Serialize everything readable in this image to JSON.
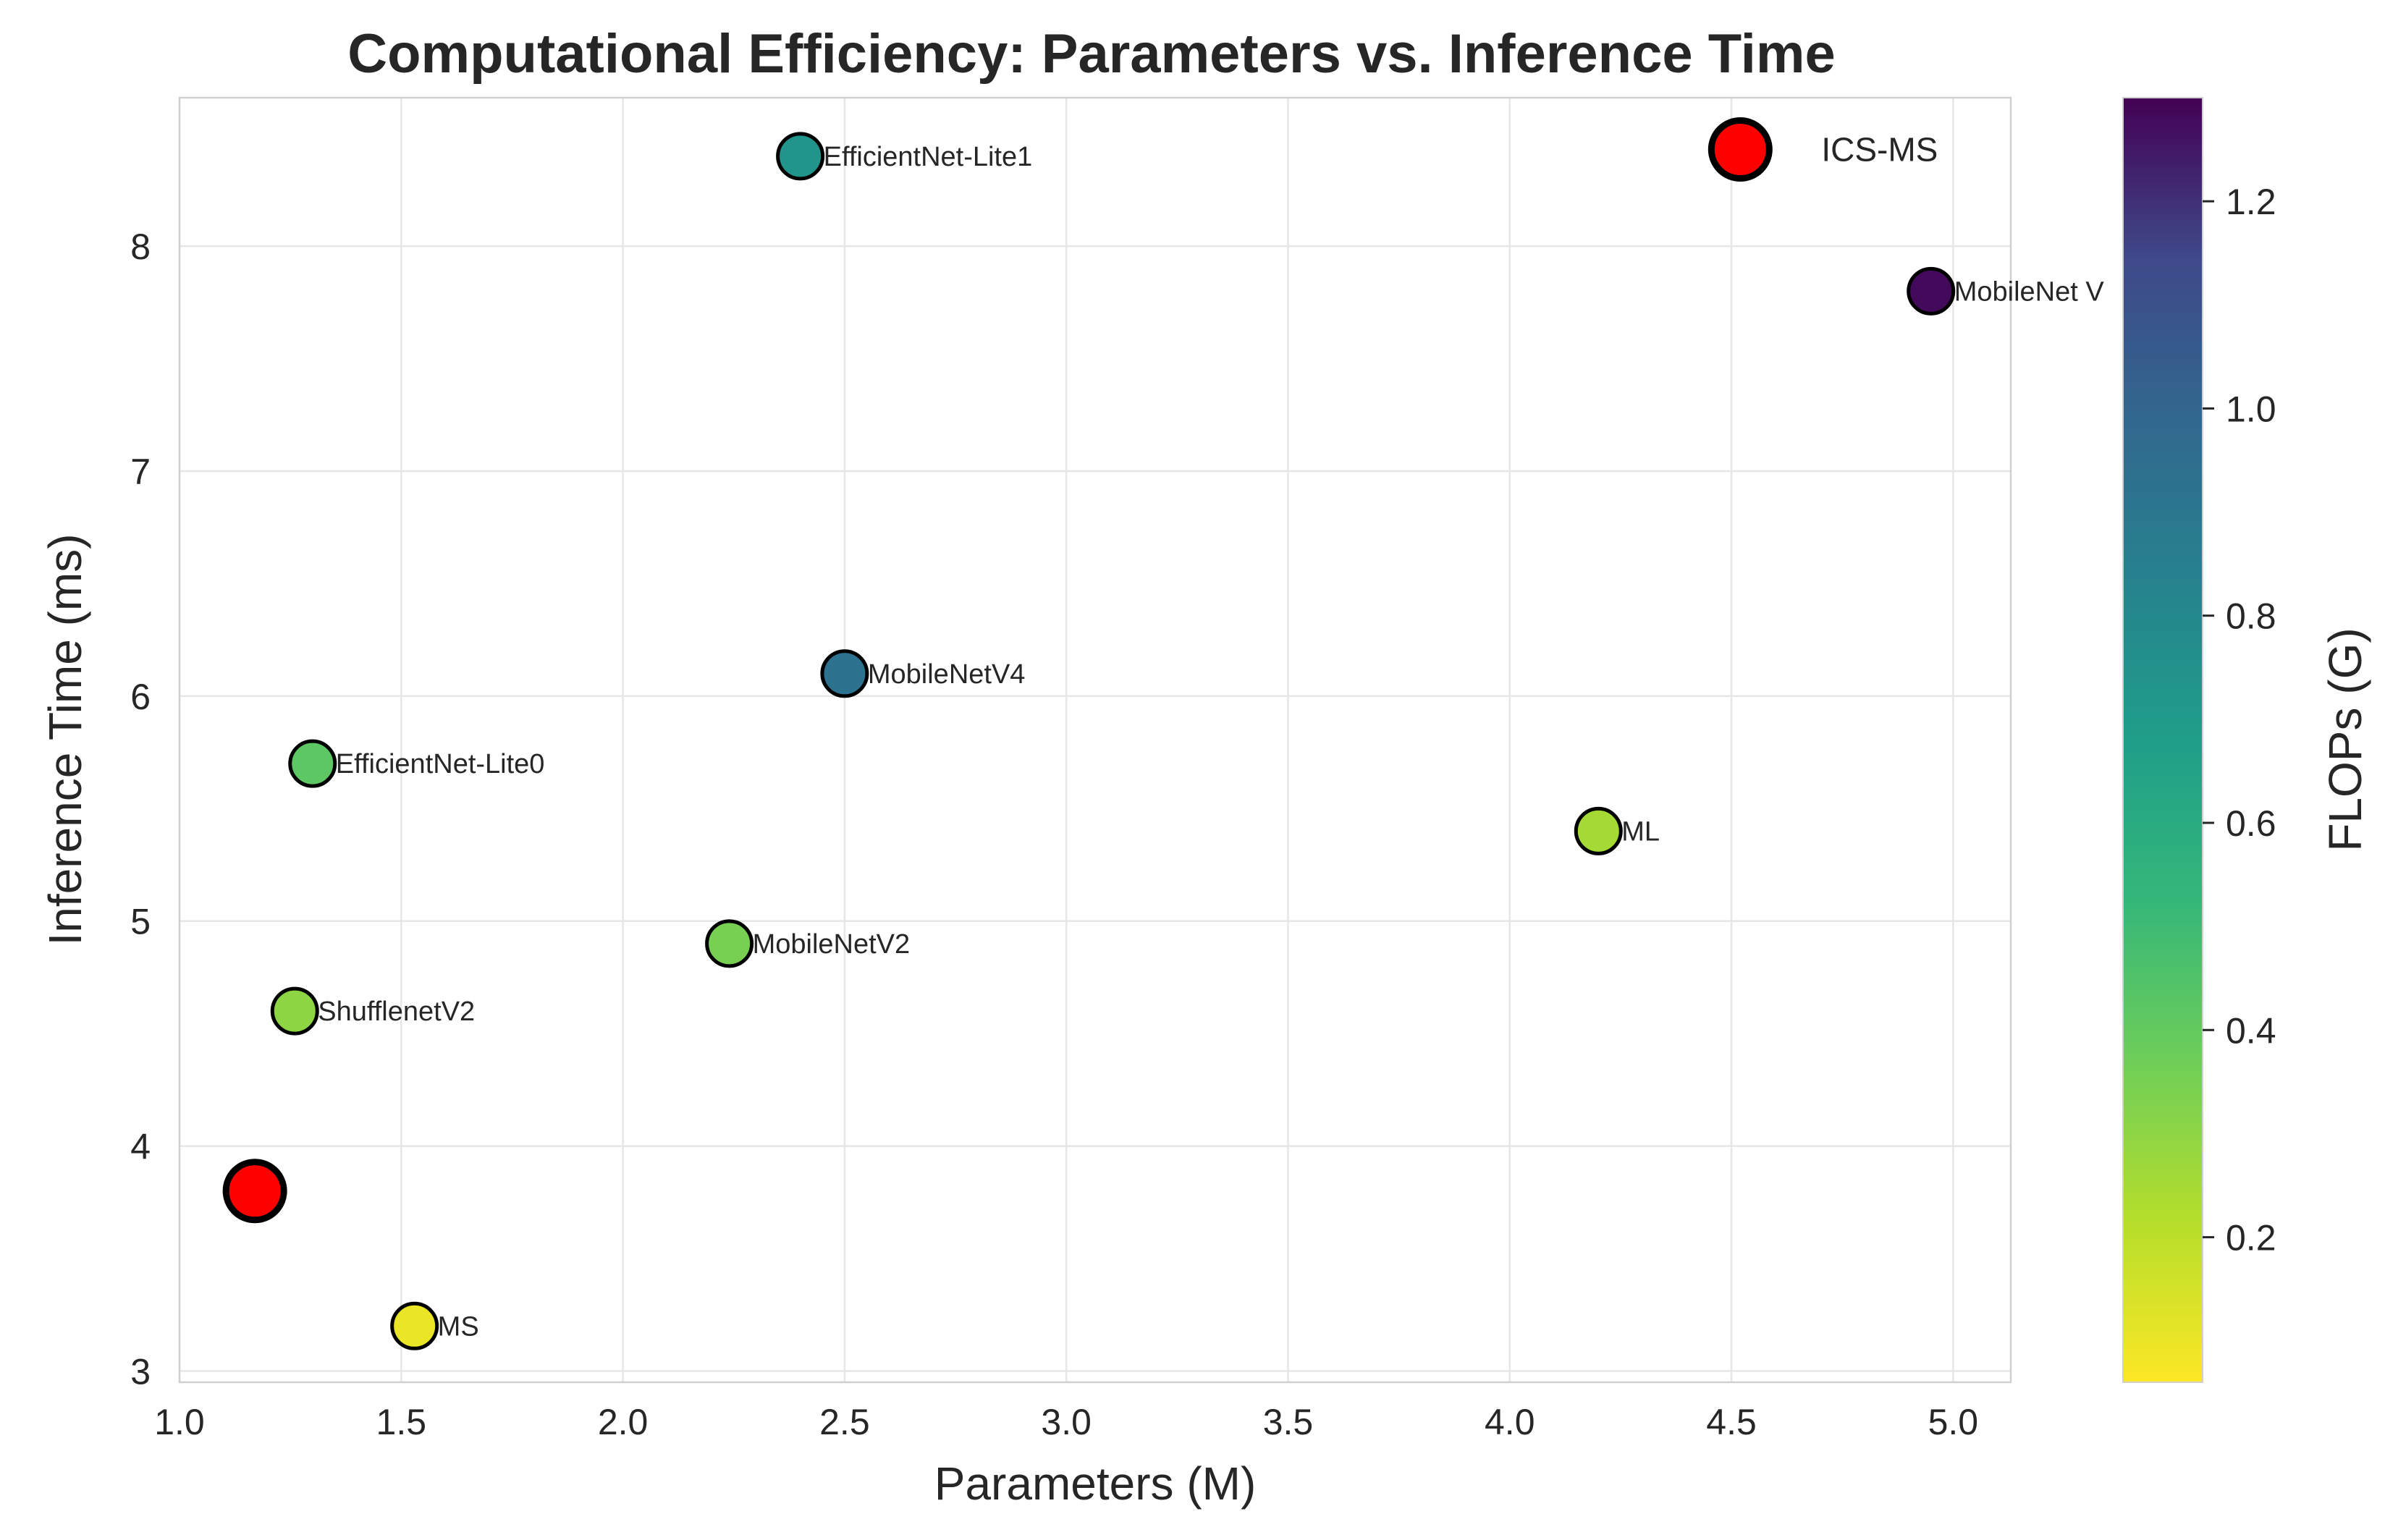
{
  "chart_data": {
    "type": "scatter",
    "title": "Computational Efficiency: Parameters vs. Inference Time",
    "xlabel": "Parameters (M)",
    "ylabel": "Inference Time (ms)",
    "colorbar_label": "FLOPs (G)",
    "xlim": [
      1.0,
      5.13
    ],
    "ylim": [
      2.95,
      8.66
    ],
    "clim": [
      0.06,
      1.3
    ],
    "xticks": [
      {
        "value": 1.0,
        "label": "1.0"
      },
      {
        "value": 1.5,
        "label": "1.5"
      },
      {
        "value": 2.0,
        "label": "2.0"
      },
      {
        "value": 2.5,
        "label": "2.5"
      },
      {
        "value": 3.0,
        "label": "3.0"
      },
      {
        "value": 3.5,
        "label": "3.5"
      },
      {
        "value": 4.0,
        "label": "4.0"
      },
      {
        "value": 4.5,
        "label": "4.5"
      },
      {
        "value": 5.0,
        "label": "5.0"
      }
    ],
    "yticks": [
      {
        "value": 3,
        "label": "3"
      },
      {
        "value": 4,
        "label": "4"
      },
      {
        "value": 5,
        "label": "5"
      },
      {
        "value": 6,
        "label": "6"
      },
      {
        "value": 7,
        "label": "7"
      },
      {
        "value": 8,
        "label": "8"
      }
    ],
    "cticks": [
      {
        "value": 0.2,
        "label": "0.2"
      },
      {
        "value": 0.4,
        "label": "0.4"
      },
      {
        "value": 0.6,
        "label": "0.6"
      },
      {
        "value": 0.8,
        "label": "0.8"
      },
      {
        "value": 1.0,
        "label": "1.0"
      },
      {
        "value": 1.2,
        "label": "1.2"
      }
    ],
    "grid": true,
    "points": [
      {
        "label": "EfficientNet-Lite1",
        "x": 2.4,
        "y": 8.4,
        "flops": 0.73
      },
      {
        "label": "MobileNet V",
        "x": 4.95,
        "y": 7.8,
        "flops": 1.28
      },
      {
        "label": "MobileNetV4",
        "x": 2.5,
        "y": 6.1,
        "flops": 0.93
      },
      {
        "label": "EfficientNet-Lite0",
        "x": 1.3,
        "y": 5.7,
        "flops": 0.42
      },
      {
        "label": "ML",
        "x": 4.2,
        "y": 5.4,
        "flops": 0.25
      },
      {
        "label": "MobileNetV2",
        "x": 2.24,
        "y": 4.9,
        "flops": 0.35
      },
      {
        "label": "ShufflenetV2",
        "x": 1.26,
        "y": 4.6,
        "flops": 0.3
      },
      {
        "label": "MS",
        "x": 1.53,
        "y": 3.2,
        "flops": 0.1
      }
    ],
    "highlight_points": [
      {
        "label": "ICS-MS",
        "x": 4.52,
        "y": 8.43,
        "color": "#ff0000"
      },
      {
        "label": "",
        "x": 1.17,
        "y": 3.8,
        "color": "#ff0000"
      }
    ]
  }
}
